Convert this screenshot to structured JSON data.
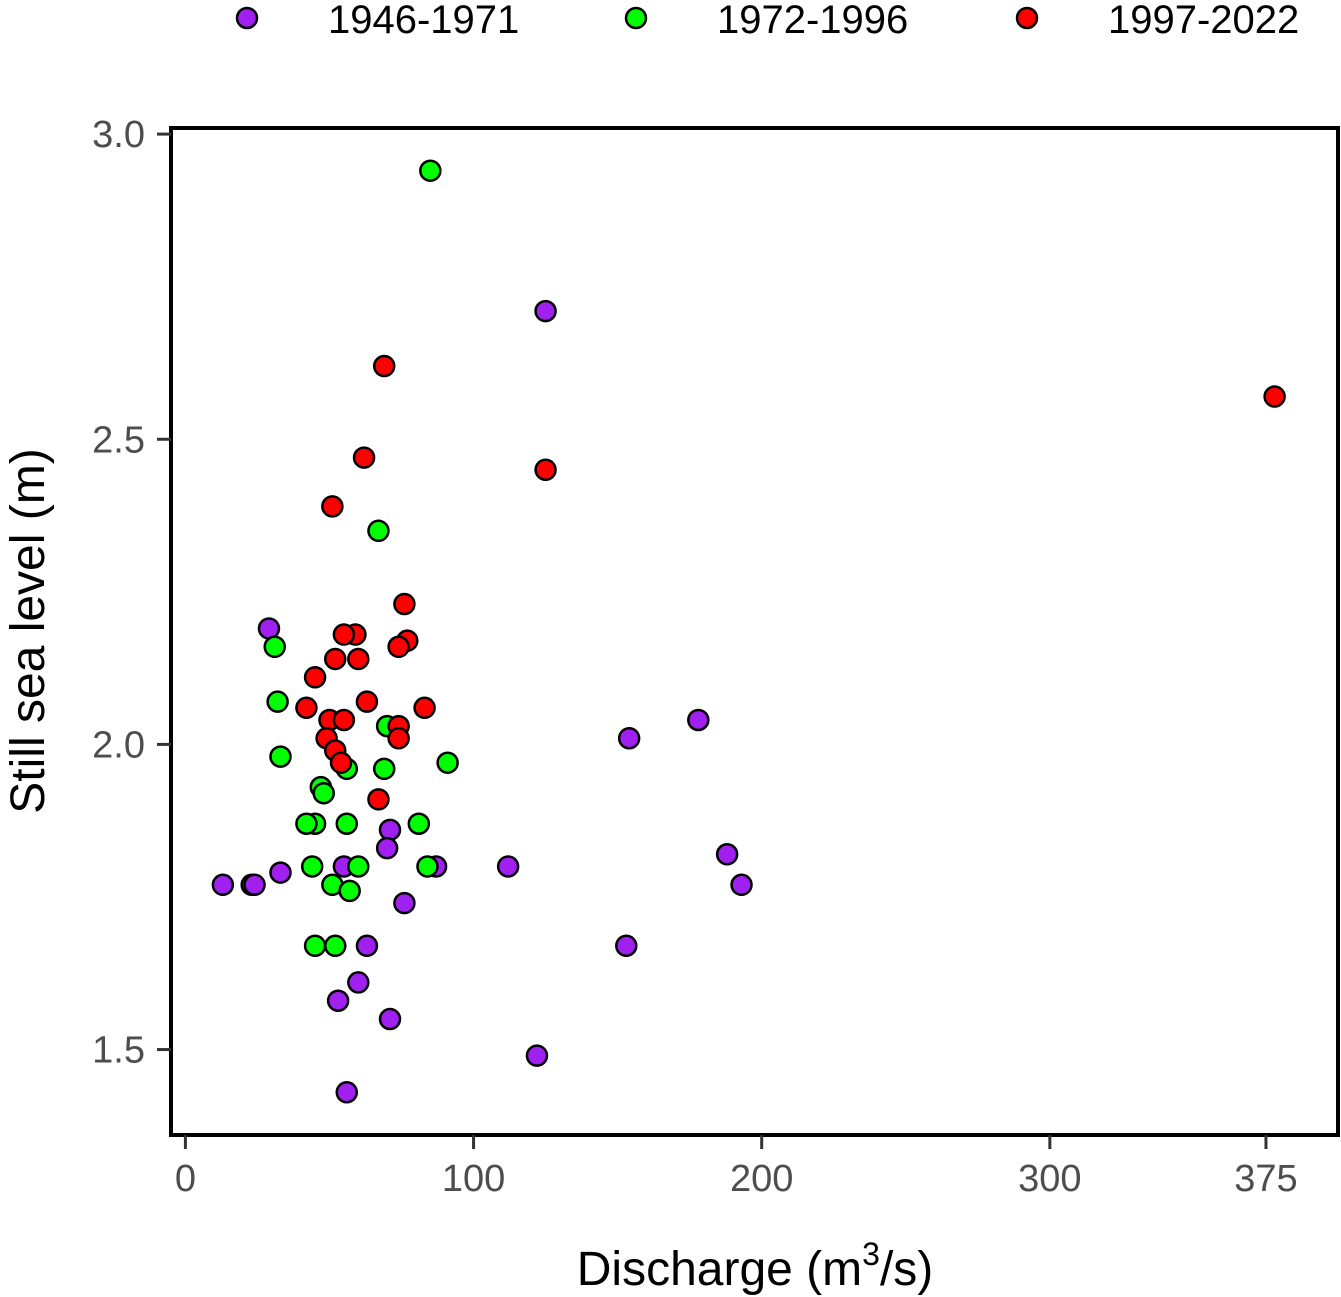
{
  "chart_data": {
    "type": "scatter",
    "xlabel_main": "Discharge (m",
    "xlabel_sup": "3",
    "xlabel_tail": "/s)",
    "ylabel": "Still sea level (m)",
    "xlim": [
      -5,
      400
    ],
    "ylim": [
      1.36,
      3.01
    ],
    "x_ticks": [
      0,
      100,
      200,
      300,
      375
    ],
    "x_tick_labels": [
      "0",
      "100",
      "200",
      "300",
      "375"
    ],
    "y_ticks": [
      1.5,
      2.0,
      2.5,
      3.0
    ],
    "y_tick_labels": [
      "1.5",
      "2.0",
      "2.5",
      "3.0"
    ],
    "legend_position": "top",
    "series": [
      {
        "name": "1946-1971",
        "color": "#a020f0",
        "points": [
          [
            13,
            1.77
          ],
          [
            23,
            1.77
          ],
          [
            24,
            1.77
          ],
          [
            29,
            2.19
          ],
          [
            33,
            1.79
          ],
          [
            55,
            1.8
          ],
          [
            87,
            1.8
          ],
          [
            71,
            1.86
          ],
          [
            70,
            1.83
          ],
          [
            76,
            1.74
          ],
          [
            112,
            1.8
          ],
          [
            63,
            1.67
          ],
          [
            60,
            1.61
          ],
          [
            53,
            1.58
          ],
          [
            71,
            1.55
          ],
          [
            56,
            1.43
          ],
          [
            122,
            1.49
          ],
          [
            154,
            2.01
          ],
          [
            153,
            1.67
          ],
          [
            125,
            2.71
          ],
          [
            178,
            2.04
          ],
          [
            188,
            1.82
          ],
          [
            193,
            1.77
          ]
        ]
      },
      {
        "name": "1972-1996",
        "color": "#00ff00",
        "points": [
          [
            85,
            2.94
          ],
          [
            67,
            2.35
          ],
          [
            31,
            2.16
          ],
          [
            32,
            2.07
          ],
          [
            33,
            1.98
          ],
          [
            70,
            2.03
          ],
          [
            91,
            1.97
          ],
          [
            56,
            1.96
          ],
          [
            69,
            1.96
          ],
          [
            47,
            1.93
          ],
          [
            48,
            1.92
          ],
          [
            45,
            1.87
          ],
          [
            42,
            1.87
          ],
          [
            56,
            1.87
          ],
          [
            81,
            1.87
          ],
          [
            44,
            1.8
          ],
          [
            60,
            1.8
          ],
          [
            84,
            1.8
          ],
          [
            51,
            1.77
          ],
          [
            57,
            1.76
          ],
          [
            45,
            1.67
          ],
          [
            52,
            1.67
          ]
        ]
      },
      {
        "name": "1997-2022",
        "color": "#ff0000",
        "points": [
          [
            69,
            2.62
          ],
          [
            62,
            2.47
          ],
          [
            125,
            2.45
          ],
          [
            51,
            2.39
          ],
          [
            76,
            2.23
          ],
          [
            59,
            2.18
          ],
          [
            55,
            2.18
          ],
          [
            77,
            2.17
          ],
          [
            74,
            2.16
          ],
          [
            52,
            2.14
          ],
          [
            60,
            2.14
          ],
          [
            45,
            2.11
          ],
          [
            63,
            2.07
          ],
          [
            42,
            2.06
          ],
          [
            83,
            2.06
          ],
          [
            50,
            2.04
          ],
          [
            55,
            2.04
          ],
          [
            74,
            2.03
          ],
          [
            49,
            2.01
          ],
          [
            74,
            2.01
          ],
          [
            52,
            1.99
          ],
          [
            54,
            1.97
          ],
          [
            67,
            1.91
          ],
          [
            378,
            2.57
          ]
        ]
      }
    ]
  }
}
